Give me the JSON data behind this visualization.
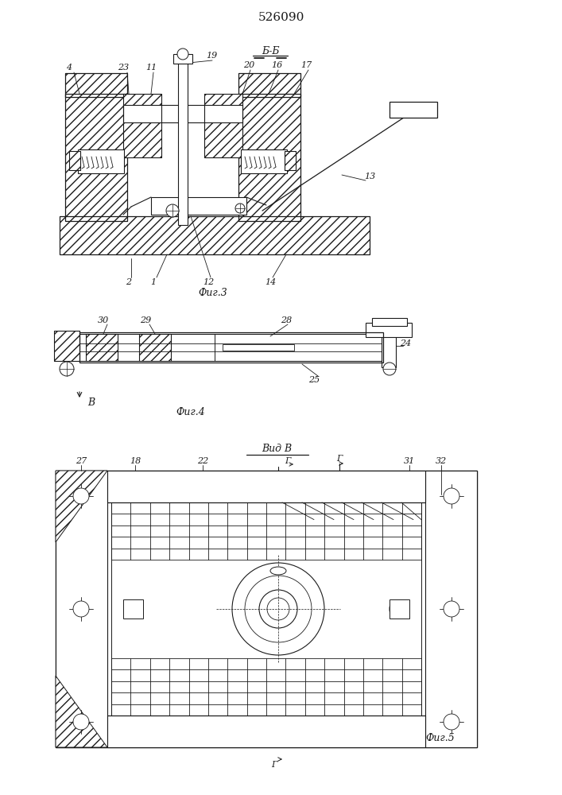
{
  "title": "526090",
  "bg_color": "#ffffff",
  "line_color": "#1a1a1a",
  "fig3_label": "Фиг.3",
  "fig4_label": "Фиг.4",
  "fig5_label": "Фиг.5",
  "section_label": "Б-Б",
  "view_label": "Вид В",
  "view_B_arrow": "В",
  "G_label": "Г"
}
